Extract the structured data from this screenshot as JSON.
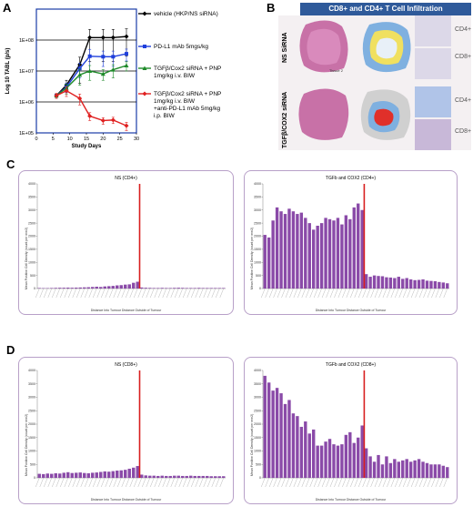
{
  "panels": {
    "a": "A",
    "b": "B",
    "c": "C",
    "d": "D"
  },
  "panel_b": {
    "title": "CD8+ and CD4+ T Cell Infiltration",
    "row_labels": [
      "NS SiRNA",
      "TGFβ/COX2 siRNA"
    ],
    "cd4_label": "CD4+",
    "cd8_label": "CD8+",
    "tissue_caption": "Tissue 2",
    "colors": {
      "header": "#2f5a9a",
      "tissue": "#c05a9a",
      "heatmap_outer": "#7fb0e0"
    }
  },
  "chart_data": [
    {
      "type": "line",
      "panel": "A",
      "title": "",
      "xlabel": "Study Days",
      "ylabel": "Log 10 TABL (p/s)",
      "y_log": true,
      "ylim": [
        100000,
        1000000000
      ],
      "y_ticks": [
        "1E+05",
        "1E+06",
        "1E+07",
        "1E+08"
      ],
      "xlim": [
        0,
        30
      ],
      "x_ticks": [
        0,
        5,
        10,
        15,
        20,
        25,
        30
      ],
      "x": [
        6,
        9,
        13,
        16,
        20,
        23,
        27
      ],
      "series": [
        {
          "name": "vehicle (HKP/NS siRNA)",
          "color": "#000000",
          "marker": "diamond",
          "values": [
            1600000.0,
            3500000.0,
            16000000.0,
            120000000.0,
            120000000.0,
            120000000.0,
            130000000.0
          ],
          "err": [
            200000.0,
            1500000.0,
            12000000.0,
            100000000.0,
            100000000.0,
            100000000.0,
            100000000.0
          ]
        },
        {
          "name": "PD-L1 mAb 5mgs/kg",
          "color": "#1f3fdc",
          "marker": "square",
          "values": [
            1600000.0,
            3000000.0,
            12000000.0,
            30000000.0,
            29000000.0,
            29000000.0,
            36000000.0
          ],
          "err": [
            200000.0,
            1000000.0,
            6000000.0,
            20000000.0,
            15000000.0,
            15000000.0,
            15000000.0
          ]
        },
        {
          "name": "TGFβ/Cox2 siRNA + PNP 1mg/kg i.v. BIW",
          "color": "#1f8a2a",
          "marker": "triangle",
          "values": [
            1600000.0,
            2800000.0,
            7500000.0,
            10000000.0,
            8000000.0,
            11000000.0,
            15000000.0
          ],
          "err": [
            200000.0,
            1000000.0,
            4000000.0,
            5000000.0,
            3000000.0,
            5000000.0,
            5000000.0
          ]
        },
        {
          "name": "TGFβ/Cox2 siRNA + PNP 1mg/kg i.v. BIW +anti-PD-L1 mAb 5mg/kg i.p. BIW",
          "color": "#e02020",
          "marker": "diamond",
          "values": [
            1600000.0,
            2300000.0,
            1300000.0,
            350000.0,
            250000.0,
            260000.0,
            170000.0
          ],
          "err": [
            300000.0,
            800000.0,
            500000.0,
            100000.0,
            60000.0,
            60000.0,
            50000.0
          ]
        }
      ]
    },
    {
      "type": "bar",
      "panel": "C",
      "title": "NS (CD4+)",
      "xlabel": "Distance Into Tumour   Distance Outside of Tumour",
      "ylabel": "Mean Positive Cell Density (count per mm2)",
      "ylim": [
        0,
        4000
      ],
      "y_ticks": [
        0,
        500,
        1000,
        1500,
        2000,
        2500,
        3000,
        3500,
        4000
      ],
      "color": "#8a4aa8",
      "boundary_index": 24,
      "values": [
        20,
        15,
        15,
        20,
        25,
        30,
        30,
        35,
        30,
        35,
        40,
        45,
        50,
        60,
        70,
        60,
        80,
        90,
        100,
        120,
        130,
        150,
        160,
        220,
        260,
        40,
        30,
        25,
        20,
        20,
        25,
        20,
        20,
        25,
        30,
        25,
        20,
        20,
        20,
        25,
        20,
        20,
        20,
        20,
        20,
        20
      ]
    },
    {
      "type": "bar",
      "panel": "C",
      "title": "TGFb and COX2 (CD4+)",
      "xlabel": "Distance Into Tumour   Distance Outside of Tumour",
      "ylabel": "Mean Positive Cell Density (count per mm2)",
      "ylim": [
        0,
        4000
      ],
      "y_ticks": [
        0,
        500,
        1000,
        1500,
        2000,
        2500,
        3000,
        3500,
        4000
      ],
      "color": "#8a4aa8",
      "boundary_index": 24,
      "values": [
        2050,
        1950,
        2600,
        3100,
        2950,
        2850,
        3050,
        2950,
        2850,
        2900,
        2700,
        2500,
        2250,
        2400,
        2500,
        2700,
        2650,
        2600,
        2700,
        2450,
        2800,
        2650,
        3100,
        3250,
        3000,
        550,
        450,
        500,
        480,
        470,
        430,
        420,
        400,
        450,
        370,
        400,
        350,
        320,
        330,
        350,
        300,
        290,
        280,
        250,
        230,
        200
      ]
    },
    {
      "type": "bar",
      "panel": "D",
      "title": "NS (CD8+)",
      "xlabel": "Distance Into Tumour   Distance Outside of Tumour",
      "ylabel": "Mean Positive Cell Density (count per mm2)",
      "ylim": [
        0,
        4000
      ],
      "y_ticks": [
        0,
        500,
        1000,
        1500,
        2000,
        2500,
        3000,
        3500,
        4000
      ],
      "color": "#8a4aa8",
      "boundary_index": 24,
      "values": [
        150,
        140,
        160,
        150,
        170,
        160,
        190,
        210,
        180,
        190,
        200,
        180,
        170,
        190,
        200,
        220,
        240,
        230,
        250,
        270,
        280,
        300,
        340,
        380,
        440,
        120,
        90,
        80,
        80,
        70,
        80,
        70,
        70,
        80,
        80,
        70,
        70,
        80,
        70,
        70,
        70,
        70,
        60,
        60,
        60,
        60
      ]
    },
    {
      "type": "bar",
      "panel": "D",
      "title": "TGFb and COX2 (CD8+)",
      "xlabel": "Distance Into Tumour   Distance Outside of Tumour",
      "ylabel": "Mean Positive Cell Density (count per mm2)",
      "ylim": [
        0,
        4000
      ],
      "y_ticks": [
        0,
        500,
        1000,
        1500,
        2000,
        2500,
        3000,
        3500,
        4000
      ],
      "color": "#8a4aa8",
      "boundary_index": 24,
      "values": [
        3800,
        3550,
        3250,
        3350,
        3150,
        2750,
        2900,
        2400,
        2300,
        1900,
        2100,
        1650,
        1800,
        1200,
        1200,
        1350,
        1450,
        1250,
        1200,
        1250,
        1600,
        1700,
        1300,
        1500,
        1950,
        1100,
        800,
        600,
        850,
        500,
        800,
        550,
        700,
        600,
        650,
        700,
        600,
        650,
        700,
        600,
        550,
        500,
        500,
        500,
        450,
        400
      ]
    }
  ]
}
